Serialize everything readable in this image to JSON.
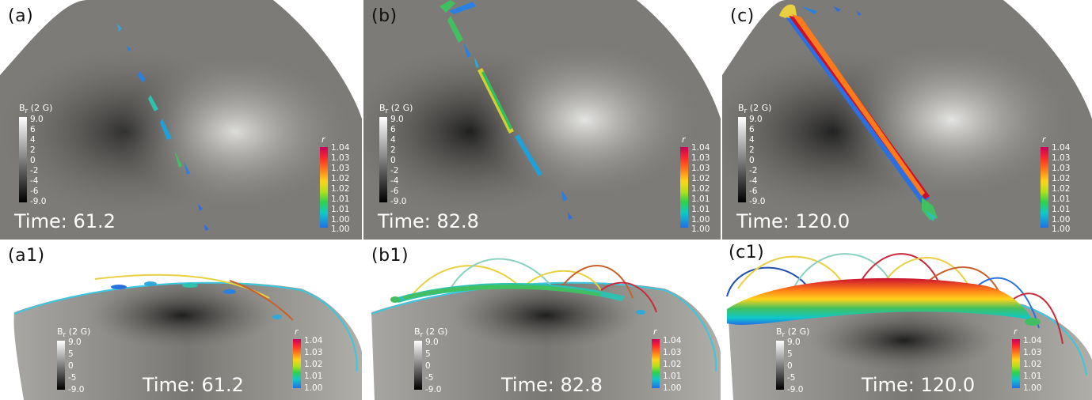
{
  "panels": [
    {
      "label": "(a)",
      "time": "Time: 61.2",
      "br_title": "B",
      "br_sub": "r",
      "br_unit": " (2 G)",
      "br_ticks": [
        "9.0",
        "6",
        "4",
        "2",
        "0",
        "-2",
        "-4",
        "-6",
        "-9.0"
      ],
      "r_title": "r",
      "r_ticks": [
        "1.04",
        "1.03",
        "1.03",
        "1.02",
        "1.02",
        "1.01",
        "1.01",
        "1.00",
        "1.00"
      ]
    },
    {
      "label": "(b)",
      "time": "Time: 82.8",
      "br_title": "B",
      "br_sub": "r",
      "br_unit": " (2 G)",
      "br_ticks": [
        "9.0",
        "6",
        "4",
        "2",
        "0",
        "-2",
        "-4",
        "-6",
        "-9.0"
      ],
      "r_title": "r",
      "r_ticks": [
        "1.04",
        "1.03",
        "1.03",
        "1.02",
        "1.02",
        "1.01",
        "1.01",
        "1.00",
        "1.00"
      ]
    },
    {
      "label": "(c)",
      "time": "Time: 120.0",
      "br_title": "B",
      "br_sub": "r",
      "br_unit": " (2 G)",
      "br_ticks": [
        "9.0",
        "6",
        "4",
        "2",
        "0",
        "-2",
        "-4",
        "-6",
        "-9.0"
      ],
      "r_title": "r",
      "r_ticks": [
        "1.04",
        "1.03",
        "1.03",
        "1.02",
        "1.02",
        "1.01",
        "1.01",
        "1.00",
        "1.00"
      ]
    },
    {
      "label": "(a1)",
      "time": "Time: 61.2",
      "br_title": "B",
      "br_sub": "r",
      "br_unit": " (2 G)",
      "br_ticks": [
        "9.0",
        "5",
        "0",
        "-5",
        "-9.0"
      ],
      "r_title": "r",
      "r_ticks": [
        "1.04",
        "1.03",
        "1.02",
        "1.01",
        "1.00"
      ]
    },
    {
      "label": "(b1)",
      "time": "Time: 82.8",
      "br_title": "B",
      "br_sub": "r",
      "br_unit": " (2 G)",
      "br_ticks": [
        "9.0",
        "5",
        "0",
        "-5",
        "-9.0"
      ],
      "r_title": "r",
      "r_ticks": [
        "1.04",
        "1.03",
        "1.02",
        "1.01",
        "1.00"
      ]
    },
    {
      "label": "(c1)",
      "time": "Time: 120.0",
      "br_title": "B",
      "br_sub": "r",
      "br_unit": " (2 G)",
      "br_ticks": [
        "9.0",
        "5",
        "0",
        "-5",
        "-9.0"
      ],
      "r_title": "r",
      "r_ticks": [
        "1.04",
        "1.03",
        "1.02",
        "1.01",
        "1.00"
      ]
    }
  ],
  "colors": {
    "surface": "#7c7a76",
    "filament_cyan": "#38c8e0",
    "filament_red": "#c82a3c",
    "filament_yellow": "#e8d040",
    "filament_green": "#40c060",
    "filament_blue": "#2a70e0"
  }
}
